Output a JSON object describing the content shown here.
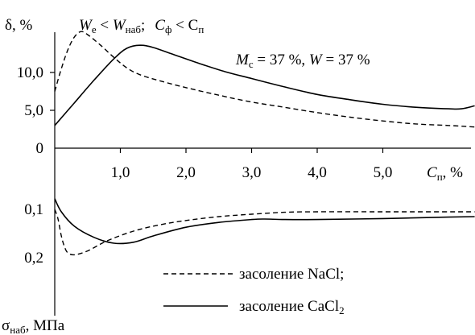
{
  "chart_data": {
    "type": "line",
    "condition_text": {
      "w": "W",
      "w_sub": "е",
      "lt": " < ",
      "w2": "W",
      "w2_sub": "наб",
      "sep": ";",
      "c": "C",
      "c_sub": "ф",
      "lt2": " < ",
      "c2": "C",
      "c2_sub": "п"
    },
    "annotation": {
      "m": "M",
      "m_sub": "с",
      "m_val": " = 37 %, ",
      "w": "W",
      "w_val": " = 37 %"
    },
    "x_axis": {
      "label_main": "C",
      "label_sub": "п",
      "label_unit": ", %",
      "ticks": [
        "1,0",
        "2,0",
        "3,0",
        "4,0",
        "5,0"
      ],
      "tick_values": [
        1.0,
        2.0,
        3.0,
        4.0,
        5.0
      ],
      "range": [
        0,
        6.5
      ]
    },
    "upper": {
      "ylabel": "δ, %",
      "ticks": [
        "0",
        "5,0",
        "10,0"
      ],
      "tick_values": [
        0,
        5.0,
        10.0
      ],
      "ylim": [
        0,
        16
      ],
      "series": [
        {
          "name": "засоление NaCl;",
          "style": "dashed",
          "x": [
            0.0,
            0.1,
            0.2,
            0.3,
            0.4,
            0.5,
            0.7,
            0.9,
            1.1,
            1.3,
            1.6,
            2.0,
            2.5,
            3.0,
            3.5,
            4.0,
            4.5,
            5.0,
            5.5,
            6.0,
            6.4
          ],
          "y": [
            7.5,
            10.5,
            13.0,
            14.7,
            15.4,
            15.0,
            13.6,
            12.0,
            10.6,
            9.7,
            8.9,
            8.0,
            7.0,
            6.1,
            5.4,
            4.7,
            4.1,
            3.6,
            3.2,
            3.0,
            2.8
          ]
        },
        {
          "name": "засоление CaCl₂",
          "style": "solid",
          "x": [
            0.0,
            0.3,
            0.6,
            0.9,
            1.1,
            1.3,
            1.5,
            1.8,
            2.2,
            2.6,
            3.0,
            3.5,
            4.0,
            4.5,
            5.0,
            5.5,
            6.0,
            6.2,
            6.4
          ],
          "y": [
            3.0,
            6.0,
            9.0,
            11.8,
            13.2,
            13.6,
            13.3,
            12.4,
            11.2,
            10.1,
            9.2,
            8.1,
            7.1,
            6.4,
            5.8,
            5.4,
            5.2,
            5.2,
            5.6
          ]
        }
      ]
    },
    "lower": {
      "ylabel_main": "σ",
      "ylabel_sub": "наб",
      "ylabel_unit": ", МПа",
      "ticks": [
        "0,1",
        "0,2"
      ],
      "tick_values": [
        0.1,
        0.2
      ],
      "ylim": [
        0.2,
        0.05
      ],
      "series": [
        {
          "name": "засоление NaCl;",
          "style": "dashed",
          "x": [
            0.0,
            0.05,
            0.1,
            0.15,
            0.2,
            0.3,
            0.5,
            0.8,
            1.2,
            1.6,
            2.0,
            2.5,
            3.0,
            3.5,
            4.0,
            5.0,
            6.0,
            6.4
          ],
          "y": [
            0.1,
            0.12,
            0.155,
            0.178,
            0.19,
            0.194,
            0.186,
            0.165,
            0.145,
            0.132,
            0.123,
            0.115,
            0.11,
            0.106,
            0.105,
            0.105,
            0.105,
            0.105
          ]
        },
        {
          "name": "засоление CaCl₂",
          "style": "solid",
          "x": [
            0.0,
            0.1,
            0.3,
            0.6,
            0.9,
            1.2,
            1.5,
            2.0,
            2.5,
            3.0,
            3.2,
            3.5,
            4.0,
            5.0,
            6.0,
            6.4
          ],
          "y": [
            0.078,
            0.105,
            0.135,
            0.158,
            0.17,
            0.168,
            0.155,
            0.137,
            0.127,
            0.121,
            0.12,
            0.121,
            0.121,
            0.119,
            0.116,
            0.115
          ]
        }
      ]
    },
    "legend": [
      {
        "style": "dashed",
        "text": "засоление NaCl;"
      },
      {
        "style": "solid",
        "text_main": "засоление CaCl",
        "text_sub": "2"
      }
    ],
    "grid": false,
    "legend_placement": "bottom-right"
  }
}
